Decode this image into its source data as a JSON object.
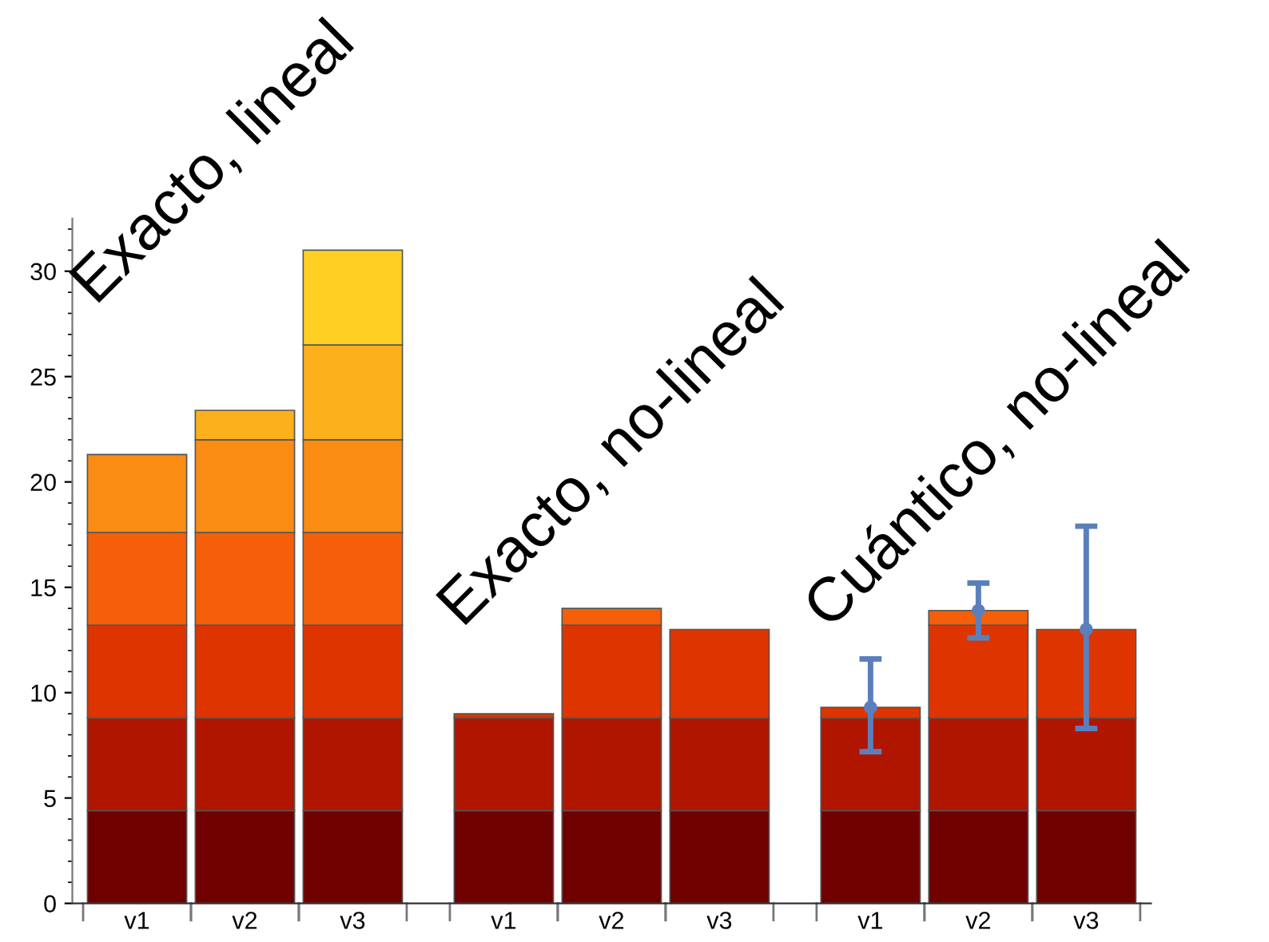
{
  "chart_data": {
    "type": "bar",
    "stacked": true,
    "categories": [
      "v1",
      "v2",
      "v3",
      null,
      "v1",
      "v2",
      "v3",
      null,
      "v1",
      "v2",
      "v3"
    ],
    "series": [
      {
        "color": "#700000",
        "values": [
          4.4,
          4.4,
          4.4,
          null,
          4.4,
          4.4,
          4.4,
          null,
          4.4,
          4.4,
          4.4
        ]
      },
      {
        "color": "#b01500",
        "values": [
          4.4,
          4.4,
          4.4,
          null,
          4.4,
          4.4,
          4.4,
          null,
          4.4,
          4.4,
          4.4
        ]
      },
      {
        "color": "#de3500",
        "values": [
          4.4,
          4.4,
          4.4,
          null,
          0.2,
          4.4,
          4.2,
          null,
          0.5,
          4.4,
          4.2
        ]
      },
      {
        "color": "#f55f0a",
        "values": [
          4.4,
          4.4,
          4.4,
          null,
          null,
          0.8,
          null,
          null,
          null,
          0.7,
          null
        ]
      },
      {
        "color": "#fa8c14",
        "values": [
          3.7,
          4.4,
          4.4,
          null,
          null,
          null,
          null,
          null,
          null,
          null,
          null
        ]
      },
      {
        "color": "#fcb01c",
        "values": [
          null,
          1.4,
          4.5,
          null,
          null,
          null,
          null,
          null,
          null,
          null,
          null
        ]
      },
      {
        "color": "#ffd024",
        "values": [
          null,
          null,
          4.5,
          null,
          null,
          null,
          null,
          null,
          null,
          null,
          null
        ]
      },
      {
        "type": "scatter",
        "color": "#5b7fbd",
        "values": [
          null,
          null,
          null,
          null,
          null,
          null,
          null,
          null,
          9.3,
          13.9,
          13.0
        ],
        "errors": [
          null,
          null,
          null,
          null,
          null,
          null,
          null,
          null,
          [
            7.2,
            11.6
          ],
          [
            12.6,
            15.2
          ],
          [
            8.3,
            17.9
          ]
        ]
      }
    ],
    "ylim": [
      0,
      32.5
    ],
    "yticks": [
      0,
      5,
      10,
      15,
      20,
      25,
      30
    ],
    "marker": "circle",
    "annotations": [
      "Exacto, lineal",
      "Exacto, no-lineal",
      "Cuántico, no-lineal"
    ]
  }
}
